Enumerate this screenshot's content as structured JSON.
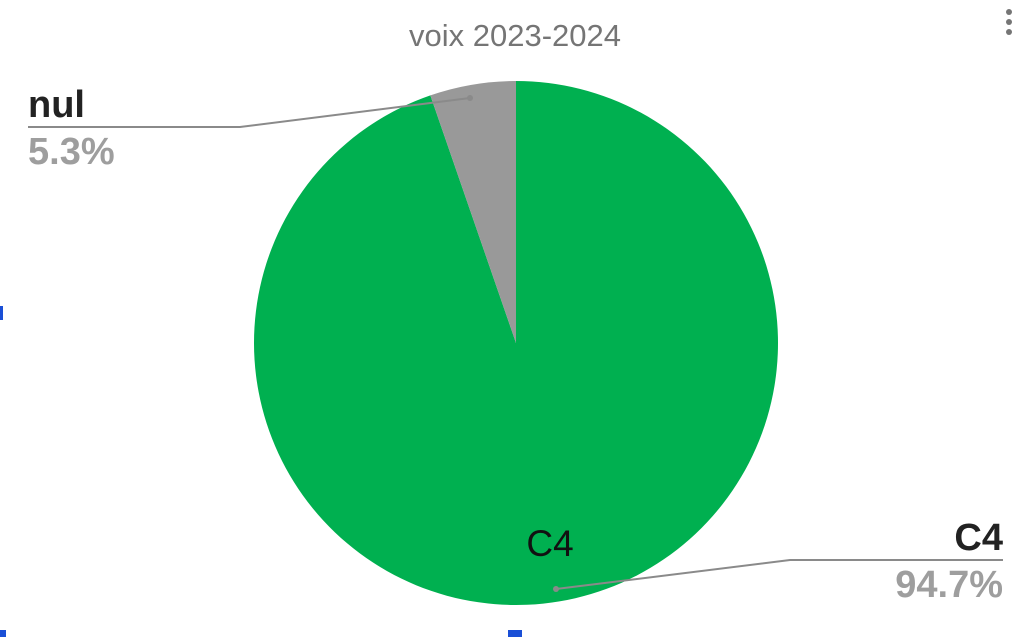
{
  "chart_data": {
    "type": "pie",
    "title": "voix 2023-2024",
    "slices": [
      {
        "label": "C4",
        "value": 94.7,
        "percent_label": "94.7%",
        "color": "#00b050",
        "inside_label": "C4"
      },
      {
        "label": "nul",
        "value": 5.3,
        "percent_label": "5.3%",
        "color": "#999999"
      }
    ],
    "legend": "callouts"
  },
  "icons": {
    "menu": "more-vert-icon"
  }
}
